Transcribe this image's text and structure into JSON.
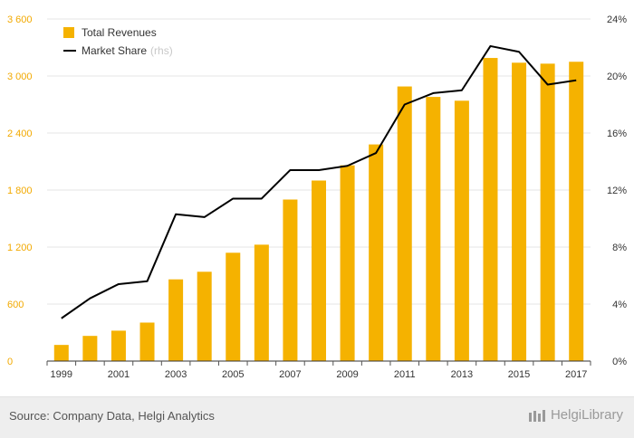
{
  "chart_data": {
    "type": "bar+line",
    "title": "",
    "x": [
      "1999",
      "2000",
      "2001",
      "2002",
      "2003",
      "2004",
      "2005",
      "2006",
      "2007",
      "2008",
      "2009",
      "2010",
      "2011",
      "2012",
      "2013",
      "2014",
      "2015",
      "2016",
      "2017"
    ],
    "x_tick_labels": [
      "1999",
      "2001",
      "2003",
      "2005",
      "2007",
      "2009",
      "2011",
      "2013",
      "2015",
      "2017"
    ],
    "y_left": {
      "range": [
        0,
        3600
      ],
      "ticks": [
        0,
        600,
        1200,
        1800,
        2400,
        3000,
        3600
      ],
      "tick_labels": [
        "0",
        "600",
        "1 200",
        "1 800",
        "2 400",
        "3 000",
        "3 600"
      ]
    },
    "y_right": {
      "range": [
        0,
        24
      ],
      "ticks": [
        0,
        4,
        8,
        12,
        16,
        20,
        24
      ],
      "tick_labels": [
        "0%",
        "4%",
        "8%",
        "12%",
        "16%",
        "20%",
        "24%"
      ]
    },
    "series": [
      {
        "name": "Total Revenues",
        "kind": "bar",
        "axis": "left",
        "color": "#f5b200",
        "values": [
          170,
          265,
          320,
          405,
          860,
          940,
          1140,
          1225,
          1700,
          1900,
          2060,
          2280,
          2890,
          2780,
          2740,
          3190,
          3140,
          3130,
          3150
        ]
      },
      {
        "name": "Market Share",
        "legend_suffix": "(rhs)",
        "kind": "line",
        "axis": "right",
        "color": "#000000",
        "values": [
          3.0,
          4.4,
          5.4,
          5.6,
          10.3,
          10.1,
          11.4,
          11.4,
          13.4,
          13.4,
          13.7,
          14.6,
          18.0,
          18.8,
          19.0,
          22.1,
          21.7,
          19.4,
          19.7
        ]
      }
    ],
    "legend": "top-left",
    "grid": true
  },
  "footer": {
    "source": "Source: Company Data, Helgi Analytics",
    "brand": "HelgiLibrary"
  }
}
